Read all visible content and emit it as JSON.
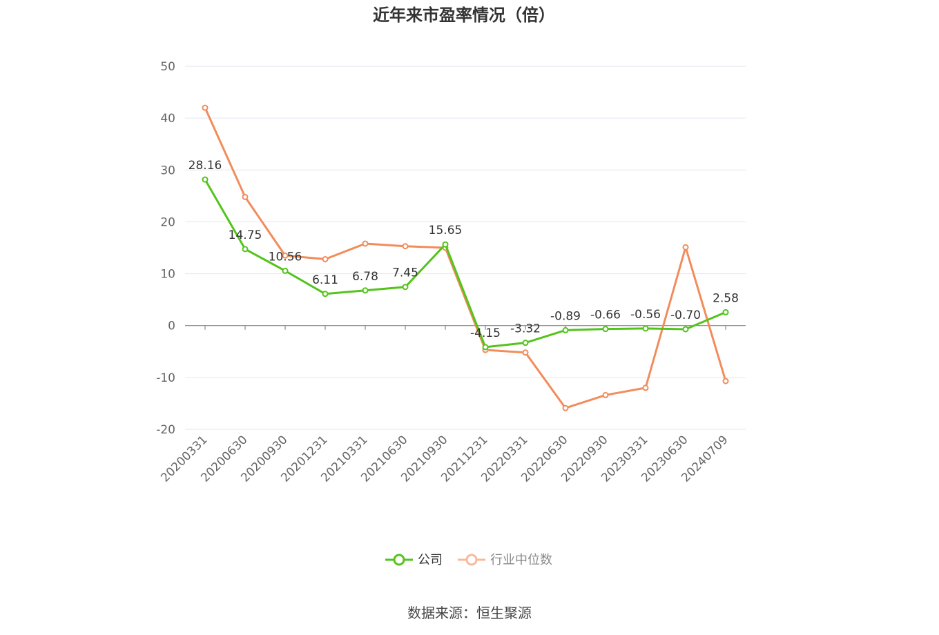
{
  "chart_data": {
    "type": "line",
    "title": "近年来市盈率情况（倍）",
    "categories": [
      "20200331",
      "20200630",
      "20200930",
      "20201231",
      "20210331",
      "20210630",
      "20210930",
      "20211231",
      "20220331",
      "20220630",
      "20220930",
      "20230331",
      "20230630",
      "20240709"
    ],
    "ylim": [
      -20,
      50
    ],
    "yticks": [
      50,
      40,
      30,
      20,
      10,
      0,
      -10,
      -20
    ],
    "grid": true,
    "legend_position": "bottom",
    "series": [
      {
        "name": "公司",
        "color": "#52c41a",
        "show_labels": true,
        "values": [
          28.16,
          14.75,
          10.56,
          6.11,
          6.78,
          7.45,
          15.65,
          -4.15,
          -3.32,
          -0.89,
          -0.66,
          -0.56,
          -0.7,
          2.58
        ],
        "labels": [
          "28.16",
          "14.75",
          "10.56",
          "6.11",
          "6.78",
          "7.45",
          "15.65",
          "-4.15",
          "-3.32",
          "-0.89",
          "-0.66",
          "-0.56",
          "-0.70",
          "2.58"
        ]
      },
      {
        "name": "行业中位数",
        "color": "#f28c5a",
        "show_labels": false,
        "values": [
          42.0,
          24.8,
          13.5,
          12.8,
          15.8,
          15.3,
          15.0,
          -4.7,
          -5.2,
          -15.9,
          -13.4,
          -12.0,
          15.1,
          -10.7
        ]
      }
    ]
  },
  "source_text": "数据来源：恒生聚源"
}
